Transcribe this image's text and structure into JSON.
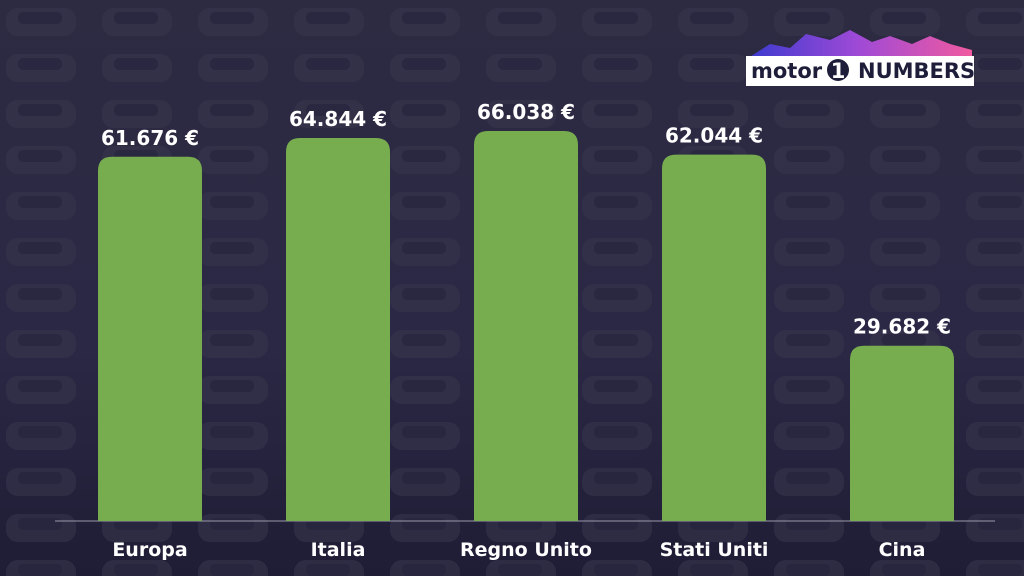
{
  "logo": {
    "name": "motor",
    "mark": "1",
    "suffix": "NUMBERS"
  },
  "chart_data": {
    "type": "bar",
    "categories": [
      "Europa",
      "Italia",
      "Regno Unito",
      "Stati Uniti",
      "Cina"
    ],
    "values": [
      61676,
      64844,
      66038,
      62044,
      29682
    ],
    "value_labels": [
      "61.676 €",
      "64.844 €",
      "66.038 €",
      "62.044 €",
      "29.682 €"
    ],
    "color": "#78ad4f"
  }
}
